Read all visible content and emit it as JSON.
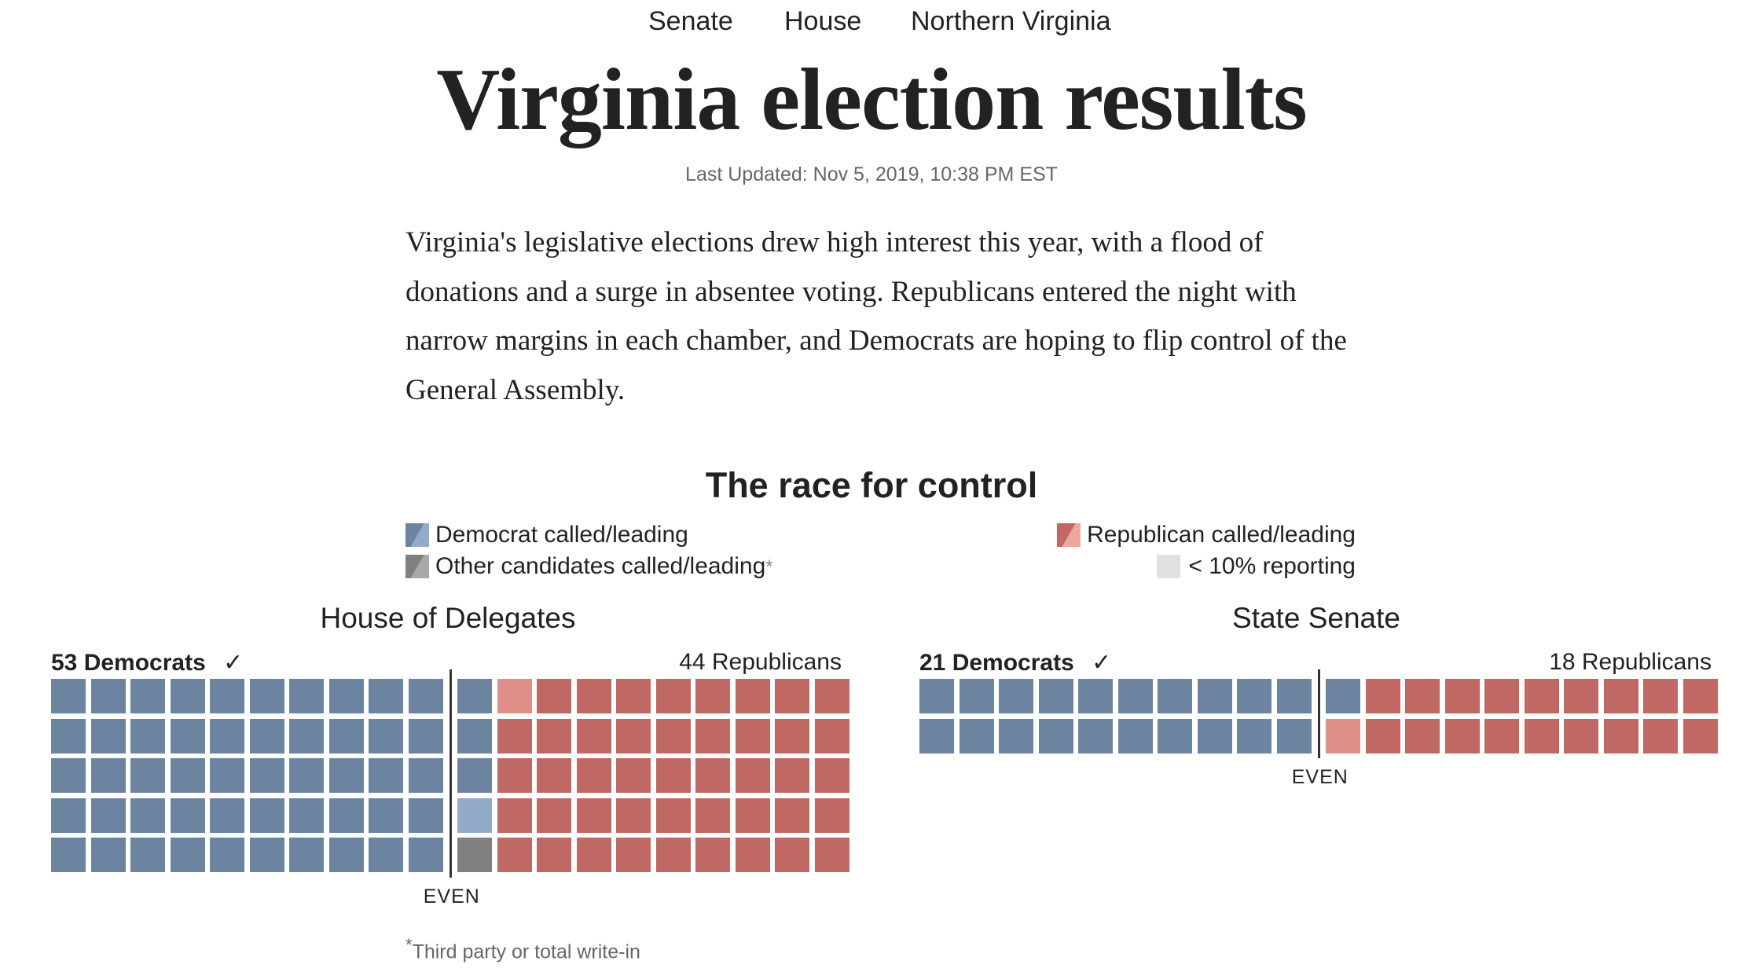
{
  "nav": {
    "items": [
      {
        "label": "Senate"
      },
      {
        "label": "House"
      },
      {
        "label": "Northern Virginia"
      }
    ]
  },
  "header": {
    "title": "Virginia election results",
    "updated": "Last Updated: Nov 5, 2019, 10:38 PM EST"
  },
  "intro": "Virginia's legislative elections drew high interest this year, with a flood of donations and a surge in absentee voting. Republicans entered the night with narrow margins in each chamber, and Democrats are hoping to flip control of the General Assembly.",
  "colors": {
    "dem_called": "#6d84a0",
    "dem_leading": "#93aac8",
    "rep_called": "#c06863",
    "rep_leading": "#e08f88",
    "other": "#808080",
    "low_reporting": "#e0e0e0"
  },
  "chart_data": {
    "type": "table",
    "title": "The race for control",
    "legend": [
      {
        "key": "dem",
        "label": "Democrat called/leading"
      },
      {
        "key": "rep",
        "label": "Republican called/leading"
      },
      {
        "key": "other",
        "label": "Other candidates called/leading",
        "suffix": "*"
      },
      {
        "key": "low",
        "label": "< 10% reporting"
      }
    ],
    "footnote_mark": "*",
    "footnote": "Third party or total write-in",
    "even_label": "EVEN",
    "chambers": [
      {
        "name": "House of Delegates",
        "dem_label": "53 Democrats",
        "dem_count": 53,
        "check": "✓",
        "rep_label": "44 Republicans",
        "rep_count": 44,
        "total_seats": 100,
        "rows": 5,
        "cols": 20,
        "tiles_by_column": [
          [
            "dem_called",
            "dem_called",
            "dem_called",
            "dem_called",
            "dem_called"
          ],
          [
            "dem_called",
            "dem_called",
            "dem_called",
            "dem_called",
            "dem_called"
          ],
          [
            "dem_called",
            "dem_called",
            "dem_called",
            "dem_called",
            "dem_called"
          ],
          [
            "dem_called",
            "dem_called",
            "dem_called",
            "dem_called",
            "dem_called"
          ],
          [
            "dem_called",
            "dem_called",
            "dem_called",
            "dem_called",
            "dem_called"
          ],
          [
            "dem_called",
            "dem_called",
            "dem_called",
            "dem_called",
            "dem_called"
          ],
          [
            "dem_called",
            "dem_called",
            "dem_called",
            "dem_called",
            "dem_called"
          ],
          [
            "dem_called",
            "dem_called",
            "dem_called",
            "dem_called",
            "dem_called"
          ],
          [
            "dem_called",
            "dem_called",
            "dem_called",
            "dem_called",
            "dem_called"
          ],
          [
            "dem_called",
            "dem_called",
            "dem_called",
            "dem_called",
            "dem_called"
          ],
          [
            "dem_called",
            "dem_called",
            "dem_called",
            "dem_leading",
            "other"
          ],
          [
            "rep_leading",
            "rep_called",
            "rep_called",
            "rep_called",
            "rep_called"
          ],
          [
            "rep_called",
            "rep_called",
            "rep_called",
            "rep_called",
            "rep_called"
          ],
          [
            "rep_called",
            "rep_called",
            "rep_called",
            "rep_called",
            "rep_called"
          ],
          [
            "rep_called",
            "rep_called",
            "rep_called",
            "rep_called",
            "rep_called"
          ],
          [
            "rep_called",
            "rep_called",
            "rep_called",
            "rep_called",
            "rep_called"
          ],
          [
            "rep_called",
            "rep_called",
            "rep_called",
            "rep_called",
            "rep_called"
          ],
          [
            "rep_called",
            "rep_called",
            "rep_called",
            "rep_called",
            "rep_called"
          ],
          [
            "rep_called",
            "rep_called",
            "rep_called",
            "rep_called",
            "rep_called"
          ],
          [
            "rep_called",
            "rep_called",
            "rep_called",
            "rep_called",
            "rep_called"
          ]
        ],
        "even_after_column": 10
      },
      {
        "name": "State Senate",
        "dem_label": "21 Democrats",
        "dem_count": 21,
        "check": "✓",
        "rep_label": "18 Republicans",
        "rep_count": 18,
        "total_seats": 40,
        "rows": 2,
        "cols": 20,
        "tiles_by_column": [
          [
            "dem_called",
            "dem_called"
          ],
          [
            "dem_called",
            "dem_called"
          ],
          [
            "dem_called",
            "dem_called"
          ],
          [
            "dem_called",
            "dem_called"
          ],
          [
            "dem_called",
            "dem_called"
          ],
          [
            "dem_called",
            "dem_called"
          ],
          [
            "dem_called",
            "dem_called"
          ],
          [
            "dem_called",
            "dem_called"
          ],
          [
            "dem_called",
            "dem_called"
          ],
          [
            "dem_called",
            "dem_called"
          ],
          [
            "dem_called",
            "rep_leading"
          ],
          [
            "rep_called",
            "rep_called"
          ],
          [
            "rep_called",
            "rep_called"
          ],
          [
            "rep_called",
            "rep_called"
          ],
          [
            "rep_called",
            "rep_called"
          ],
          [
            "rep_called",
            "rep_called"
          ],
          [
            "rep_called",
            "rep_called"
          ],
          [
            "rep_called",
            "rep_called"
          ],
          [
            "rep_called",
            "rep_called"
          ],
          [
            "rep_called",
            "rep_called"
          ]
        ],
        "even_after_column": 10
      }
    ]
  }
}
